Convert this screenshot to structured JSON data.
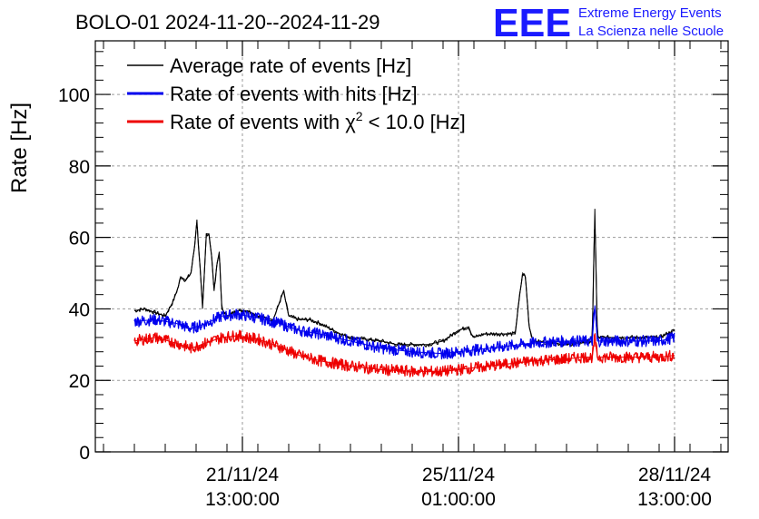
{
  "chart_data": {
    "type": "line",
    "title": "BOLO-01 2024-11-20--2024-11-29",
    "ylabel": "Rate [Hz]",
    "xlabel": "",
    "ylim": [
      0,
      115
    ],
    "yticks": [
      0,
      20,
      40,
      60,
      80,
      100
    ],
    "grid": true,
    "legend_position": "top-left",
    "x_range_hours": [
      0,
      223
    ],
    "x_ticks": [
      {
        "hour": 18,
        "date": "21/11/24",
        "time": "13:00:00"
      },
      {
        "hour": 102,
        "date": "25/11/24",
        "time": "01:00:00"
      },
      {
        "hour": 186,
        "date": "28/11/24",
        "time": "13:00:00"
      }
    ],
    "series": [
      {
        "name": "Average rate of events [Hz]",
        "color": "#000000",
        "x": [
          -24,
          -20,
          -16,
          -12,
          -9,
          -7,
          -6,
          -4,
          -2,
          -0.5,
          0.3,
          0.7,
          1.5,
          2.5,
          4,
          5,
          6,
          7,
          8,
          9,
          10,
          12,
          16,
          20,
          24,
          30,
          34,
          36,
          40,
          44,
          48,
          56,
          60,
          72,
          78,
          84,
          90,
          96,
          100,
          102,
          106,
          107,
          108,
          112,
          118,
          124,
          126,
          127,
          128,
          129.5,
          131,
          144,
          154,
          155,
          156,
          164,
          172,
          180,
          186
        ],
        "values": [
          39.5,
          40,
          39,
          38,
          42,
          46,
          49,
          48,
          50,
          58,
          65,
          60,
          52,
          40,
          61,
          61,
          55,
          45,
          52,
          56,
          40,
          38,
          39.5,
          39.5,
          38,
          37,
          45,
          38,
          37,
          37,
          36,
          33,
          32,
          31,
          30,
          30,
          30,
          31,
          33,
          34,
          35,
          33,
          32,
          33,
          33,
          33,
          45,
          50,
          49,
          35,
          31,
          30,
          31,
          68,
          32,
          32,
          32,
          32,
          34
        ]
      },
      {
        "name": "Rate of events with hits [Hz]",
        "color": "#0000ee",
        "x": [
          -24,
          -16,
          -8,
          -2,
          4,
          10,
          16,
          24,
          32,
          40,
          48,
          60,
          72,
          84,
          96,
          108,
          120,
          132,
          144,
          150,
          154,
          155,
          156,
          164,
          172,
          180,
          186
        ],
        "values": [
          36.5,
          37,
          36,
          34.5,
          36,
          38,
          38.5,
          37.5,
          36,
          34,
          33,
          31,
          29,
          28,
          27.5,
          28.5,
          29.5,
          30.5,
          31,
          31,
          31,
          41,
          31,
          31,
          31,
          31,
          32
        ]
      },
      {
        "name": "Rate of events with χ² < 10.0 [Hz]",
        "color": "#ee0000",
        "x": [
          -24,
          -16,
          -8,
          -2,
          4,
          10,
          16,
          24,
          32,
          40,
          48,
          60,
          72,
          84,
          96,
          108,
          120,
          132,
          144,
          150,
          154,
          155,
          156,
          164,
          172,
          180,
          186
        ],
        "values": [
          31,
          32,
          30.5,
          29,
          30.5,
          32,
          32.5,
          31.5,
          29.5,
          27,
          25.5,
          24,
          23,
          22.5,
          22.5,
          23.5,
          24.5,
          25.5,
          26,
          26.5,
          26.5,
          32,
          26.5,
          26.5,
          26.5,
          26.5,
          27
        ]
      }
    ]
  },
  "legend": {
    "avg_label": "Average rate of events [Hz]",
    "hits_label": "Rate of events with hits [Hz]",
    "chi2_prefix": "Rate of events with χ",
    "chi2_sup": "2",
    "chi2_suffix": " < 10.0 [Hz]"
  },
  "logo": {
    "letters": "EEE",
    "line1": "Extreme Energy Events",
    "line2": "La Scienza nelle Scuole"
  }
}
